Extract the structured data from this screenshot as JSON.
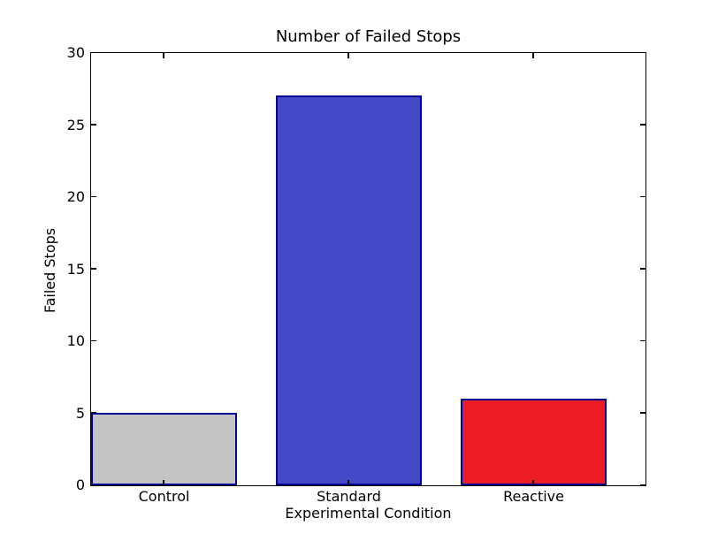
{
  "chart_data": {
    "type": "bar",
    "title": "Number of Failed Stops",
    "xlabel": "Experimental Condition",
    "ylabel": "Failed Stops",
    "categories": [
      "Control",
      "Standard",
      "Reactive"
    ],
    "values": [
      5,
      27,
      6
    ],
    "bar_colors": [
      "#c4c4c4",
      "#4349c6",
      "#ec1c24"
    ],
    "bar_edge_color": "#000090",
    "ylim": [
      0,
      30
    ],
    "yticks": [
      0,
      5,
      10,
      15,
      20,
      25,
      30
    ],
    "grid": false,
    "legend_position": "none",
    "background_color": "#ffffff",
    "axis_color": "#000000"
  }
}
